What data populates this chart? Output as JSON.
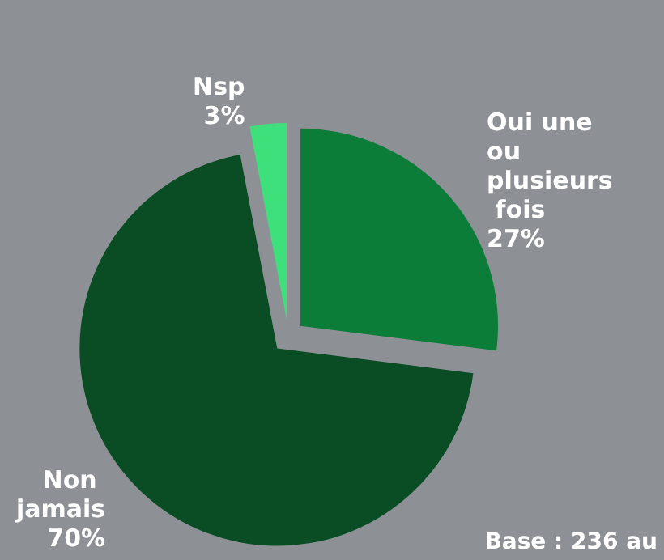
{
  "chart_data": {
    "type": "pie",
    "categories": [
      "Oui une ou plusieurs fois",
      "Non jamais",
      "Nsp"
    ],
    "values": [
      27,
      70,
      3
    ],
    "colors": [
      "#0b7d38",
      "#0a4d24",
      "#3ee07c"
    ],
    "value_labels": [
      "27%",
      "70%",
      "3%"
    ],
    "legend": false,
    "annotations": [
      "Base : 236 au"
    ]
  }
}
